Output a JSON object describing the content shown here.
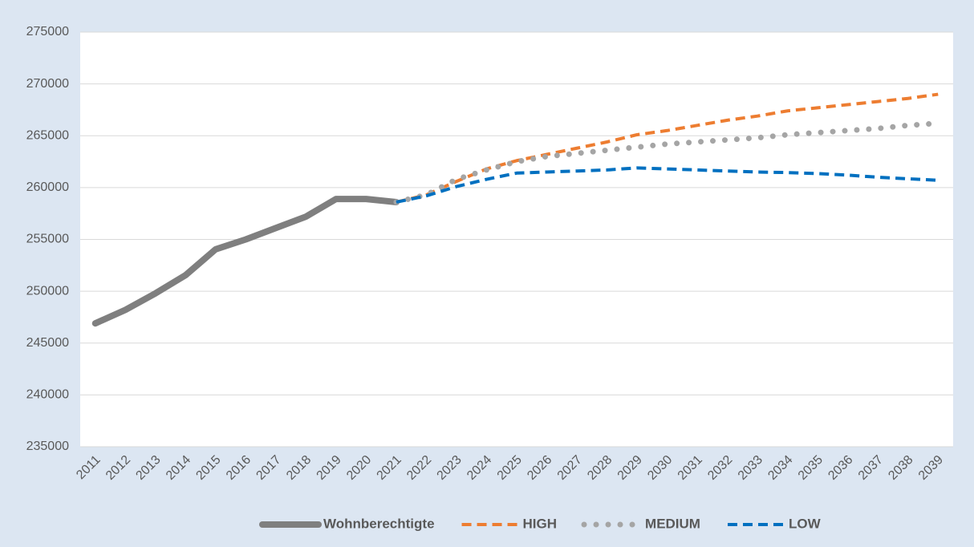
{
  "chart_data": {
    "type": "line",
    "categories": [
      "2011",
      "2012",
      "2013",
      "2014",
      "2015",
      "2016",
      "2017",
      "2018",
      "2019",
      "2020",
      "2021",
      "2022",
      "2023",
      "2024",
      "2025",
      "2026",
      "2027",
      "2028",
      "2029",
      "2030",
      "2031",
      "2032",
      "2033",
      "2034",
      "2035",
      "2036",
      "2037",
      "2038",
      "2039"
    ],
    "ylim": [
      235000,
      275000
    ],
    "yticks": [
      235000,
      240000,
      245000,
      250000,
      255000,
      260000,
      265000,
      270000,
      275000
    ],
    "grid": true,
    "legend": "bottom",
    "series": [
      {
        "name": "Wohnberechtigte",
        "color": "#7f7f7f",
        "style": "solid",
        "values": [
          246900,
          248200,
          249800,
          251550,
          254050,
          255000,
          256100,
          257200,
          258900,
          258900,
          258600,
          null,
          null,
          null,
          null,
          null,
          null,
          null,
          null,
          null,
          null,
          null,
          null,
          null,
          null,
          null,
          null,
          null,
          null
        ]
      },
      {
        "name": "HIGH",
        "color": "#ed7d31",
        "style": "dashed",
        "values": [
          null,
          null,
          null,
          null,
          null,
          null,
          null,
          null,
          null,
          null,
          258600,
          259300,
          260600,
          261800,
          262600,
          263200,
          263800,
          264400,
          265100,
          265500,
          266000,
          266500,
          266900,
          267400,
          267700,
          268000,
          268300,
          268600,
          269000
        ]
      },
      {
        "name": "MEDIUM",
        "color": "#a5a5a5",
        "style": "dotted",
        "values": [
          null,
          null,
          null,
          null,
          null,
          null,
          null,
          null,
          null,
          null,
          258600,
          259300,
          260800,
          261700,
          262500,
          263000,
          263300,
          263600,
          263900,
          264200,
          264400,
          264600,
          264800,
          265100,
          265300,
          265500,
          265700,
          266000,
          266200
        ]
      },
      {
        "name": "LOW",
        "color": "#0070c0",
        "style": "dashed",
        "values": [
          null,
          null,
          null,
          null,
          null,
          null,
          null,
          null,
          null,
          null,
          258600,
          259200,
          260100,
          260800,
          261400,
          261500,
          261600,
          261700,
          261900,
          261800,
          261700,
          261600,
          261500,
          261450,
          261350,
          261200,
          261000,
          260850,
          260700
        ]
      }
    ]
  }
}
